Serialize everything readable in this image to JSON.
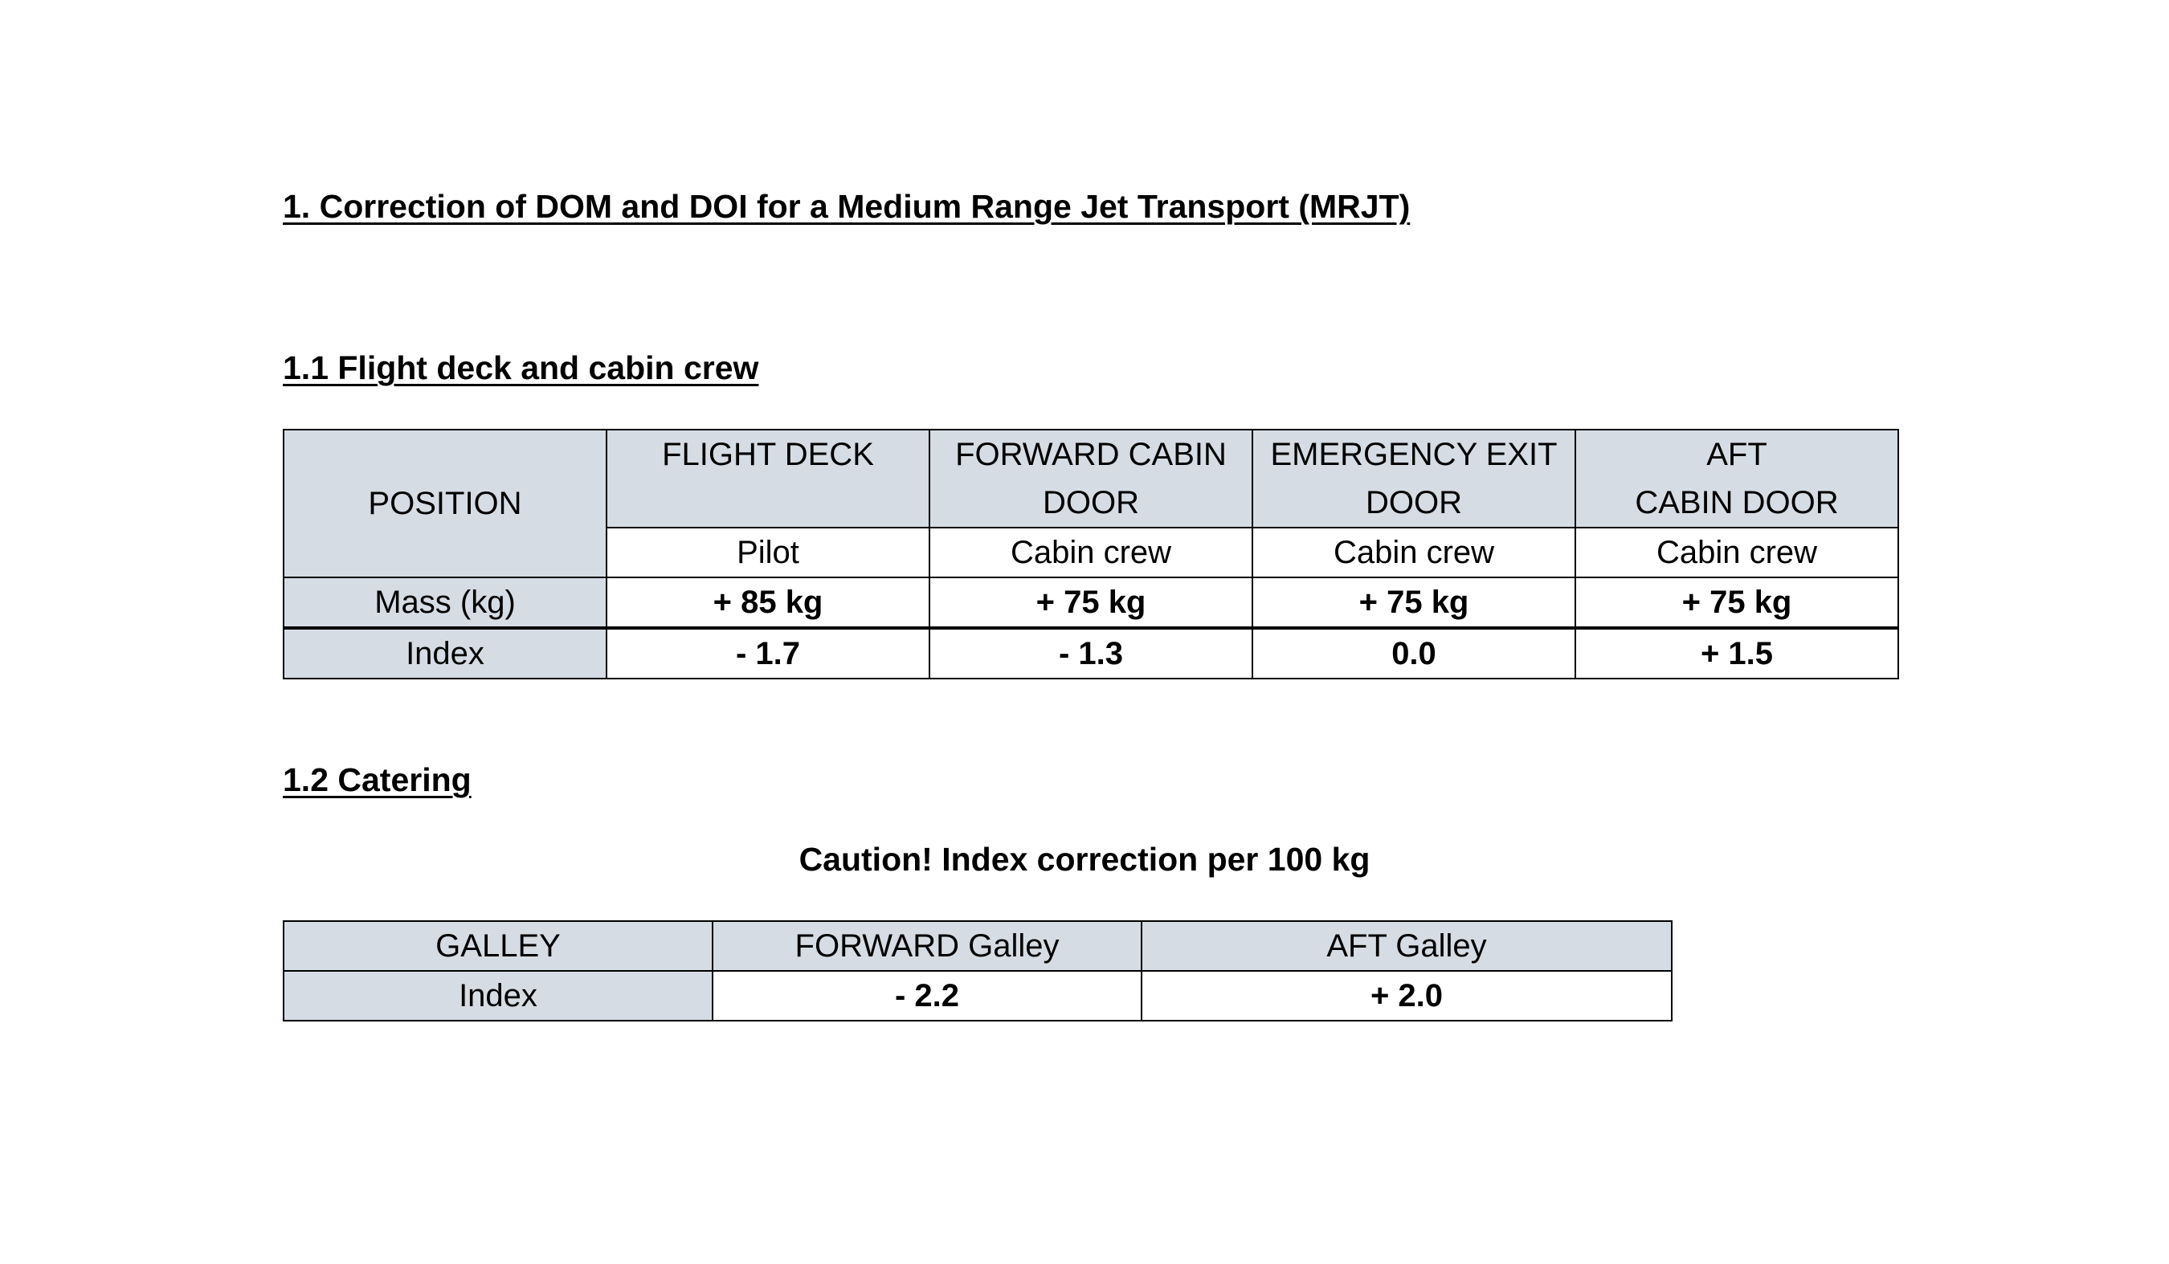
{
  "document": {
    "title": "1. Correction of DOM and DOI for a Medium Range Jet Transport (MRJT)"
  },
  "crew_section": {
    "heading": "1.1 Flight deck and cabin crew",
    "position_label": "POSITION",
    "columns": [
      {
        "line1": "FLIGHT DECK",
        "line2": "",
        "crew": "Pilot",
        "mass": "+ 85 kg",
        "index": "- 1.7"
      },
      {
        "line1": "FORWARD CABIN",
        "line2": "DOOR",
        "crew": "Cabin crew",
        "mass": "+ 75 kg",
        "index": "- 1.3"
      },
      {
        "line1": "EMERGENCY EXIT",
        "line2": "DOOR",
        "crew": "Cabin crew",
        "mass": "+ 75 kg",
        "index": "0.0"
      },
      {
        "line1": "AFT",
        "line2": "CABIN DOOR",
        "crew": "Cabin crew",
        "mass": "+ 75 kg",
        "index": "+ 1.5"
      }
    ],
    "mass_label": "Mass (kg)",
    "index_label": "Index"
  },
  "catering_section": {
    "heading": "1.2 Catering",
    "caution": "Caution! Index correction per 100 kg",
    "galley_label": "GALLEY",
    "index_label": "Index",
    "columns": [
      {
        "name": "FORWARD Galley",
        "index": "- 2.2"
      },
      {
        "name": "AFT Galley",
        "index": "+ 2.0"
      }
    ]
  },
  "colors": {
    "header_fill": "#d6dce4",
    "border": "#000000"
  }
}
